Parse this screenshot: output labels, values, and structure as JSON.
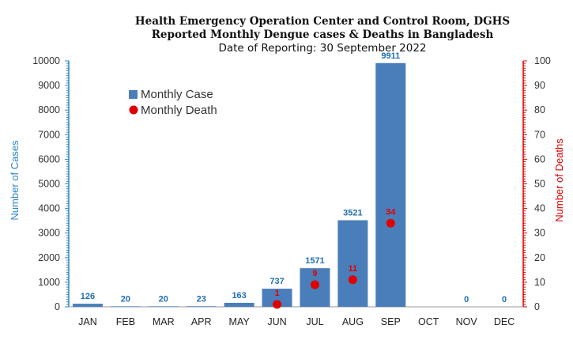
{
  "chart_data": {
    "type": "bar",
    "title": "Health Emergency Operation Center and Control Room, DGHS",
    "subtitle": "Reported Monthly Dengue cases & Deaths in Bangladesh",
    "date_line": "Date of Reporting: 30 September 2022",
    "categories": [
      "JAN",
      "FEB",
      "MAR",
      "APR",
      "MAY",
      "JUN",
      "JUL",
      "AUG",
      "SEP",
      "OCT",
      "NOV",
      "DEC"
    ],
    "series": [
      {
        "name": "Monthly Case",
        "axis": "left",
        "kind": "bar",
        "color": "#4a7ebb",
        "values": [
          126,
          20,
          20,
          23,
          163,
          737,
          1571,
          3521,
          9911,
          null,
          0,
          0
        ]
      },
      {
        "name": "Monthly Death",
        "axis": "right",
        "kind": "marker",
        "color": "#e00000",
        "values": [
          null,
          null,
          null,
          null,
          null,
          1,
          9,
          11,
          34,
          null,
          null,
          null
        ]
      }
    ],
    "ylabel": "Number of Cases",
    "ylim": [
      0,
      10000
    ],
    "yticks": [
      0,
      1000,
      2000,
      3000,
      4000,
      5000,
      6000,
      7000,
      8000,
      9000,
      10000
    ],
    "ylabel_right": "Number of Deaths",
    "ylim_right": [
      0,
      100
    ],
    "yticks_right": [
      0,
      10,
      20,
      30,
      40,
      50,
      60,
      70,
      80,
      90,
      100
    ],
    "legend_position": "top-left",
    "grid": false,
    "left_axis_color": "#2e86c1",
    "right_axis_color": "#e00000",
    "case_label_color": "#1f6fb4",
    "death_label_color": "#e00000"
  }
}
